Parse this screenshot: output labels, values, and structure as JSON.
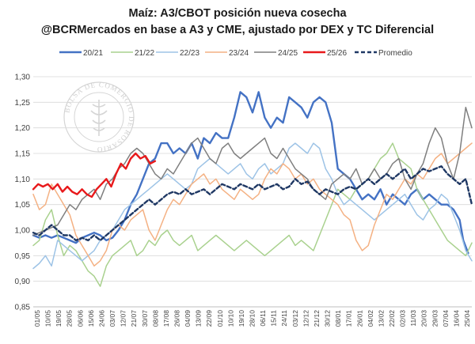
{
  "chart_data": {
    "type": "line",
    "title": "Maíz: A3/CBOT posición nueva cosecha",
    "subtitle": "@BCRMercados en base a A3 y CME, ajustado por DEX y TC Diferencial",
    "watermark": "BOLSA DE COMERCIO DE ROSARIO",
    "ylim": [
      0.85,
      1.3
    ],
    "yticks": [
      "0,85",
      "0,90",
      "0,95",
      "1,00",
      "1,05",
      "1,10",
      "1,15",
      "1,20",
      "1,25",
      "1,30"
    ],
    "ytick_values": [
      0.85,
      0.9,
      0.95,
      1.0,
      1.05,
      1.1,
      1.15,
      1.2,
      1.25,
      1.3
    ],
    "grid": true,
    "legend_position": "top",
    "x_domain": [
      0,
      360
    ],
    "x_tick_labels": [
      "01/05",
      "10/05",
      "19/05",
      "28/05",
      "06/06",
      "15/06",
      "24/06",
      "03/07",
      "12/07",
      "21/07",
      "30/07",
      "08/08",
      "17/08",
      "26/08",
      "04/09",
      "13/09",
      "22/09",
      "01/10",
      "10/10",
      "19/10",
      "28/10",
      "06/11",
      "15/11",
      "24/11",
      "03/12",
      "12/12",
      "21/12",
      "30/12",
      "08/01",
      "17/01",
      "26/01",
      "04/02",
      "13/02",
      "22/02",
      "02/03",
      "11/03",
      "20/03",
      "29/03",
      "07/04",
      "16/04",
      "25/04"
    ],
    "series": [
      {
        "name": "20/21",
        "color": "#4472C4",
        "dash": false,
        "width": 2.4,
        "x": [
          0,
          5,
          10,
          15,
          20,
          25,
          30,
          35,
          40,
          45,
          50,
          55,
          60,
          65,
          70,
          75,
          80,
          85,
          90,
          95,
          100,
          105,
          110,
          115,
          120,
          125,
          130,
          135,
          140,
          145,
          150,
          155,
          160,
          165,
          170,
          175,
          180,
          185,
          190,
          195,
          200,
          205,
          210,
          215,
          220,
          225,
          230,
          235,
          240,
          245,
          250,
          255,
          260,
          265,
          270,
          275,
          280,
          285,
          290,
          295,
          300,
          305,
          310,
          315,
          320,
          325,
          330,
          335,
          340,
          345,
          350,
          353,
          357
        ],
        "y": [
          0.99,
          0.985,
          0.99,
          0.985,
          0.99,
          0.985,
          0.98,
          0.975,
          0.985,
          0.99,
          0.995,
          0.99,
          0.98,
          0.985,
          1.0,
          1.02,
          1.05,
          1.07,
          1.1,
          1.13,
          1.14,
          1.17,
          1.17,
          1.15,
          1.16,
          1.15,
          1.17,
          1.14,
          1.18,
          1.17,
          1.19,
          1.18,
          1.18,
          1.22,
          1.27,
          1.26,
          1.23,
          1.27,
          1.22,
          1.2,
          1.22,
          1.21,
          1.26,
          1.25,
          1.24,
          1.22,
          1.25,
          1.26,
          1.25,
          1.21,
          1.12,
          1.11,
          1.1,
          1.08,
          1.06,
          1.07,
          1.06,
          1.08,
          1.05,
          1.07,
          1.06,
          1.05,
          1.07,
          1.08,
          1.06,
          1.07,
          1.06,
          1.05,
          1.05,
          1.04,
          1.02,
          0.98,
          0.955
        ]
      },
      {
        "name": "21/22",
        "color": "#A9D18E",
        "dash": false,
        "width": 1.5,
        "x": [
          0,
          5,
          10,
          15,
          20,
          25,
          30,
          35,
          40,
          45,
          50,
          55,
          60,
          65,
          70,
          75,
          80,
          85,
          90,
          95,
          100,
          105,
          110,
          115,
          120,
          125,
          130,
          135,
          140,
          145,
          150,
          155,
          160,
          165,
          170,
          175,
          180,
          185,
          190,
          195,
          200,
          205,
          210,
          215,
          220,
          225,
          230,
          235,
          240,
          245,
          250,
          255,
          260,
          265,
          270,
          275,
          280,
          285,
          290,
          295,
          300,
          305,
          310,
          315,
          320,
          325,
          330,
          335,
          340,
          345,
          350,
          355,
          360
        ],
        "y": [
          0.97,
          0.98,
          1.02,
          1.04,
          0.99,
          0.95,
          0.97,
          0.96,
          0.94,
          0.92,
          0.91,
          0.89,
          0.93,
          0.95,
          0.96,
          0.97,
          0.98,
          0.95,
          0.96,
          0.98,
          0.97,
          0.99,
          1.0,
          0.98,
          0.97,
          0.98,
          0.99,
          0.96,
          0.97,
          0.98,
          0.99,
          0.98,
          0.97,
          0.96,
          0.97,
          0.98,
          0.97,
          0.96,
          0.95,
          0.96,
          0.97,
          0.98,
          0.99,
          0.97,
          0.98,
          0.97,
          0.96,
          0.99,
          1.02,
          1.05,
          1.08,
          1.07,
          1.06,
          1.08,
          1.09,
          1.1,
          1.12,
          1.14,
          1.15,
          1.17,
          1.14,
          1.13,
          1.12,
          1.08,
          1.06,
          1.04,
          1.02,
          1.0,
          0.98,
          0.97,
          0.96,
          0.95,
          0.975
        ]
      },
      {
        "name": "22/23",
        "color": "#9DC3E6",
        "dash": false,
        "width": 1.5,
        "x": [
          0,
          5,
          10,
          15,
          20,
          25,
          30,
          35,
          40,
          45,
          50,
          55,
          60,
          65,
          70,
          75,
          80,
          85,
          90,
          95,
          100,
          105,
          110,
          115,
          120,
          125,
          130,
          135,
          140,
          145,
          150,
          155,
          160,
          165,
          170,
          175,
          180,
          185,
          190,
          195,
          200,
          205,
          210,
          215,
          220,
          225,
          230,
          235,
          240,
          245,
          250,
          255,
          260,
          265,
          270,
          275,
          280,
          285,
          290,
          295,
          300,
          305,
          310,
          315,
          320,
          325,
          330,
          335,
          340,
          345,
          350,
          355,
          360
        ],
        "y": [
          0.925,
          0.935,
          0.95,
          0.93,
          0.98,
          0.97,
          0.96,
          0.95,
          0.94,
          0.95,
          0.96,
          0.98,
          0.99,
          1.0,
          1.02,
          1.04,
          1.05,
          1.06,
          1.07,
          1.08,
          1.09,
          1.1,
          1.11,
          1.1,
          1.09,
          1.08,
          1.09,
          1.12,
          1.13,
          1.14,
          1.13,
          1.12,
          1.11,
          1.12,
          1.13,
          1.11,
          1.1,
          1.12,
          1.13,
          1.11,
          1.12,
          1.13,
          1.16,
          1.17,
          1.16,
          1.15,
          1.17,
          1.16,
          1.12,
          1.1,
          1.07,
          1.05,
          1.06,
          1.05,
          1.04,
          1.03,
          1.02,
          1.03,
          1.04,
          1.05,
          1.06,
          1.07,
          1.05,
          1.03,
          1.02,
          1.04,
          1.05,
          1.07,
          1.06,
          1.03,
          1.0,
          0.96,
          0.94
        ]
      },
      {
        "name": "23/24",
        "color": "#F4B183",
        "dash": false,
        "width": 1.5,
        "x": [
          0,
          5,
          10,
          15,
          20,
          25,
          30,
          35,
          40,
          45,
          50,
          55,
          60,
          65,
          70,
          75,
          80,
          85,
          90,
          95,
          100,
          105,
          110,
          115,
          120,
          125,
          130,
          135,
          140,
          145,
          150,
          155,
          160,
          165,
          170,
          175,
          180,
          185,
          190,
          195,
          200,
          205,
          210,
          215,
          220,
          225,
          230,
          235,
          240,
          245,
          250,
          255,
          260,
          265,
          270,
          275,
          280,
          285,
          290,
          295,
          300,
          305,
          310,
          315,
          320,
          325,
          330,
          335,
          340,
          345,
          350,
          355,
          360
        ],
        "y": [
          1.07,
          1.04,
          1.05,
          1.09,
          1.07,
          1.05,
          1.03,
          0.99,
          0.97,
          0.95,
          0.93,
          0.94,
          0.96,
          1.0,
          1.01,
          1.0,
          1.02,
          1.03,
          1.04,
          1.0,
          0.98,
          1.01,
          1.04,
          1.06,
          1.05,
          1.07,
          1.09,
          1.1,
          1.11,
          1.09,
          1.1,
          1.08,
          1.07,
          1.06,
          1.08,
          1.07,
          1.06,
          1.07,
          1.1,
          1.12,
          1.11,
          1.13,
          1.12,
          1.1,
          1.11,
          1.09,
          1.1,
          1.08,
          1.07,
          1.06,
          1.05,
          1.03,
          1.02,
          0.98,
          0.96,
          0.97,
          1.01,
          1.04,
          1.07,
          1.06,
          1.08,
          1.1,
          1.09,
          1.11,
          1.1,
          1.12,
          1.14,
          1.15,
          1.13,
          1.14,
          1.15,
          1.16,
          1.17
        ]
      },
      {
        "name": "24/25",
        "color": "#7F7F7F",
        "dash": false,
        "width": 1.5,
        "x": [
          0,
          5,
          10,
          15,
          20,
          25,
          30,
          35,
          40,
          45,
          50,
          55,
          60,
          65,
          70,
          75,
          80,
          85,
          90,
          95,
          100,
          105,
          110,
          115,
          120,
          125,
          130,
          135,
          140,
          145,
          150,
          155,
          160,
          165,
          170,
          175,
          180,
          185,
          190,
          195,
          200,
          205,
          210,
          215,
          220,
          225,
          230,
          235,
          240,
          245,
          250,
          255,
          260,
          265,
          270,
          275,
          280,
          285,
          290,
          295,
          300,
          305,
          310,
          315,
          320,
          325,
          330,
          335,
          340,
          345,
          350,
          355,
          360
        ],
        "y": [
          0.99,
          0.995,
          1.0,
          1.005,
          1.01,
          1.03,
          1.05,
          1.04,
          1.06,
          1.07,
          1.08,
          1.06,
          1.09,
          1.1,
          1.12,
          1.13,
          1.15,
          1.16,
          1.15,
          1.13,
          1.11,
          1.1,
          1.12,
          1.11,
          1.13,
          1.15,
          1.17,
          1.18,
          1.16,
          1.14,
          1.13,
          1.16,
          1.17,
          1.15,
          1.14,
          1.15,
          1.16,
          1.17,
          1.18,
          1.15,
          1.14,
          1.16,
          1.14,
          1.12,
          1.11,
          1.1,
          1.08,
          1.07,
          1.06,
          1.09,
          1.1,
          1.11,
          1.1,
          1.12,
          1.09,
          1.1,
          1.12,
          1.1,
          1.11,
          1.13,
          1.14,
          1.1,
          1.08,
          1.11,
          1.13,
          1.17,
          1.2,
          1.18,
          1.13,
          1.1,
          1.15,
          1.24,
          1.2
        ]
      },
      {
        "name": "25/26",
        "color": "#E8191B",
        "dash": false,
        "width": 2.4,
        "x": [
          0,
          4,
          8,
          12,
          16,
          20,
          24,
          28,
          32,
          36,
          40,
          44,
          48,
          52,
          56,
          60,
          64,
          68,
          72,
          76,
          80,
          84,
          88,
          92,
          96,
          100
        ],
        "y": [
          1.08,
          1.09,
          1.085,
          1.09,
          1.08,
          1.09,
          1.075,
          1.085,
          1.075,
          1.07,
          1.08,
          1.07,
          1.065,
          1.08,
          1.09,
          1.1,
          1.085,
          1.11,
          1.13,
          1.12,
          1.14,
          1.15,
          1.14,
          1.145,
          1.13,
          1.135
        ]
      },
      {
        "name": "Promedio",
        "color": "#1F3864",
        "dash": true,
        "width": 2.4,
        "x": [
          0,
          5,
          10,
          15,
          20,
          25,
          30,
          35,
          40,
          45,
          50,
          55,
          60,
          65,
          70,
          75,
          80,
          85,
          90,
          95,
          100,
          105,
          110,
          115,
          120,
          125,
          130,
          135,
          140,
          145,
          150,
          155,
          160,
          165,
          170,
          175,
          180,
          185,
          190,
          195,
          200,
          205,
          210,
          215,
          220,
          225,
          230,
          235,
          240,
          245,
          250,
          255,
          260,
          265,
          270,
          275,
          280,
          285,
          290,
          295,
          300,
          305,
          310,
          315,
          320,
          325,
          330,
          335,
          340,
          345,
          350,
          355,
          360
        ],
        "y": [
          0.995,
          0.99,
          1.0,
          1.01,
          1.0,
          0.99,
          0.99,
          0.98,
          0.985,
          0.98,
          0.99,
          0.98,
          0.99,
          1.0,
          1.01,
          1.02,
          1.03,
          1.04,
          1.05,
          1.06,
          1.05,
          1.06,
          1.07,
          1.075,
          1.07,
          1.08,
          1.07,
          1.075,
          1.08,
          1.07,
          1.08,
          1.09,
          1.085,
          1.08,
          1.09,
          1.085,
          1.08,
          1.09,
          1.08,
          1.085,
          1.09,
          1.08,
          1.085,
          1.1,
          1.09,
          1.095,
          1.08,
          1.07,
          1.08,
          1.075,
          1.07,
          1.08,
          1.085,
          1.08,
          1.09,
          1.1,
          1.09,
          1.1,
          1.11,
          1.1,
          1.11,
          1.12,
          1.1,
          1.11,
          1.12,
          1.115,
          1.12,
          1.125,
          1.11,
          1.1,
          1.09,
          1.1,
          1.05
        ]
      }
    ]
  }
}
